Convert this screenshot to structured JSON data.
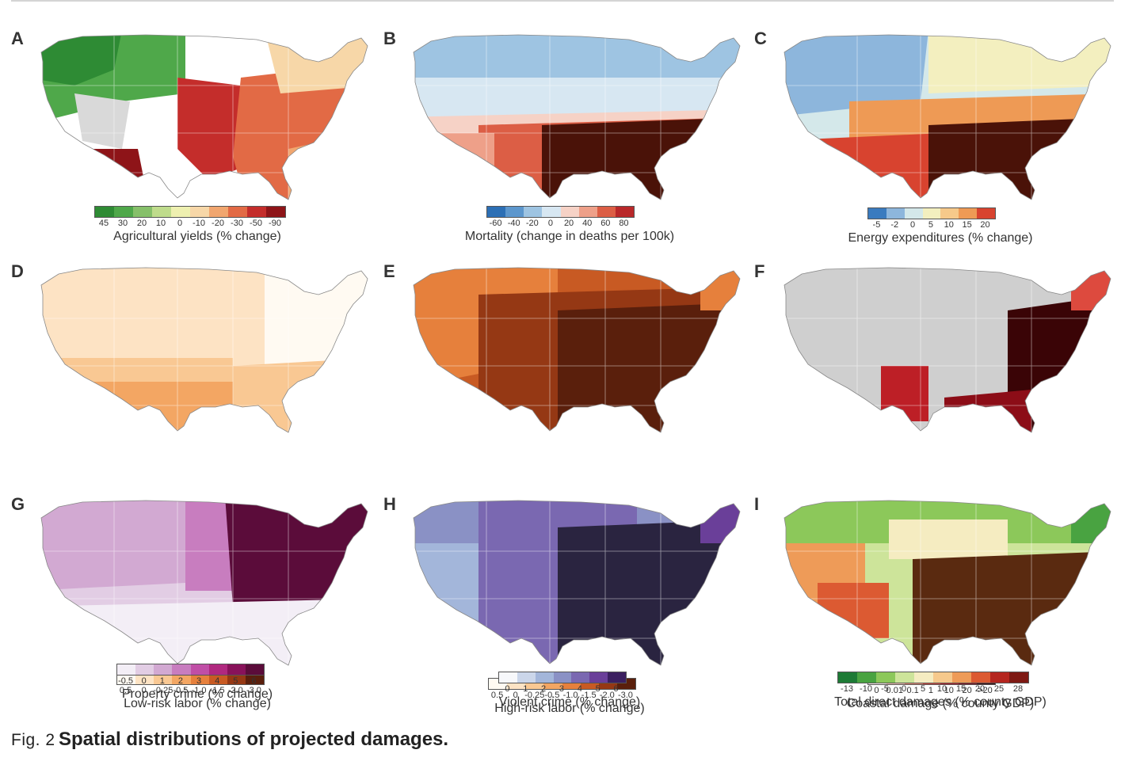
{
  "caption": {
    "fig_label": "Fig. 2",
    "title": "Spatial distributions of projected damages."
  },
  "panels": [
    {
      "letter": "A",
      "legend_title": "Agricultural yields (% change)",
      "ticks": [
        "45",
        "30",
        "20",
        "10",
        "0",
        "-10",
        "-20",
        "-30",
        "-50",
        "-90"
      ],
      "colors": [
        "#2e8b34",
        "#4fa84a",
        "#86c06a",
        "#bfdc8c",
        "#eef0b0",
        "#f7d7a8",
        "#f1a66f",
        "#e26a45",
        "#c42d2b",
        "#8e1418"
      ]
    },
    {
      "letter": "B",
      "legend_title": "Mortality (change in deaths per 100k)",
      "ticks": [
        "-60",
        "-40",
        "-20",
        "0",
        "20",
        "40",
        "60",
        "80"
      ],
      "colors": [
        "#2c6fb5",
        "#5d97cd",
        "#9ec4e2",
        "#d7e7f2",
        "#f6d2c6",
        "#eea089",
        "#dc5e45",
        "#b9282a"
      ]
    },
    {
      "letter": "C",
      "legend_title": "Energy expenditures (% change)",
      "ticks": [
        "-5",
        "-2",
        "0",
        "5",
        "10",
        "15",
        "20"
      ],
      "colors": [
        "#3a7bbf",
        "#8db6dc",
        "#d4e8ea",
        "#f3efbf",
        "#f6c98a",
        "#ee9a55",
        "#d8432f"
      ]
    },
    {
      "letter": "D",
      "legend_title": "Low-risk labor (% change)",
      "ticks": [
        "0.5",
        "0",
        "-0.25",
        "-0.5",
        "-1.0",
        "-1.5",
        "-2.0",
        "-3.0"
      ],
      "colors": [
        "#fffaf2",
        "#fde3c4",
        "#f9c893",
        "#f3a663",
        "#e6803c",
        "#c85a23",
        "#953814",
        "#5a1f0c"
      ]
    },
    {
      "letter": "E",
      "legend_title": "High-risk labor (% change)",
      "ticks": [
        "0.5",
        "0",
        "-0.25",
        "-0.5",
        "-1.0",
        "-1.5",
        "-2.0",
        "-3.0"
      ],
      "colors": [
        "#fffaf2",
        "#fde3c4",
        "#f9c893",
        "#f3a663",
        "#e6803c",
        "#c85a23",
        "#953814",
        "#5a1f0c"
      ]
    },
    {
      "letter": "F",
      "legend_title": "Coastal damage (% county GDP)",
      "ticks": [
        "0",
        "0.01",
        "0.1",
        "1",
        "10",
        "20",
        ">20"
      ],
      "colors": [
        "#fff5f0",
        "#f8c8b6",
        "#ee8e76",
        "#dd4a3e",
        "#bd1f26",
        "#8c0d17",
        "#3a0406"
      ]
    },
    {
      "letter": "G",
      "legend_title": "Property crime (% change)",
      "ticks": [
        "-0.5",
        "0",
        "1",
        "2",
        "3",
        "4",
        "5",
        "6"
      ],
      "colors": [
        "#f3eef6",
        "#e2cde4",
        "#d2a9d2",
        "#c87dbf",
        "#c04ea6",
        "#b0287f",
        "#88125a",
        "#5b0c3a"
      ]
    },
    {
      "letter": "H",
      "legend_title": "Violent crime (% change)",
      "ticks": [
        "0",
        "1",
        "2",
        "3",
        "4",
        "5",
        "6"
      ],
      "colors": [
        "#f7f8fb",
        "#cbd6ea",
        "#a3b6da",
        "#8a91c5",
        "#7a68b1",
        "#6a3f99",
        "#3b1f60"
      ]
    },
    {
      "letter": "I",
      "legend_title": "Total direct damages (% county GDP)",
      "ticks": [
        "-13",
        "-10",
        "-5",
        "0",
        "5",
        "10",
        "15",
        "20",
        "25",
        "28"
      ],
      "colors": [
        "#1d7a35",
        "#49a341",
        "#8cc85a",
        "#cde49a",
        "#f5ecc1",
        "#f6c98c",
        "#ee9b58",
        "#dc5a32",
        "#b5261f",
        "#7e1913"
      ]
    }
  ]
}
